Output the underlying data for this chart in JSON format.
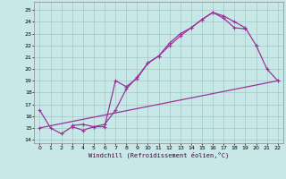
{
  "bg_color": "#c8e8e8",
  "grid_color": "#a8cccc",
  "line_color": "#993399",
  "xlabel": "Windchill (Refroidissement éolien,°C)",
  "xlim": [
    -0.5,
    22.5
  ],
  "ylim": [
    13.7,
    25.7
  ],
  "xticks": [
    0,
    1,
    2,
    3,
    4,
    5,
    6,
    7,
    8,
    9,
    10,
    11,
    12,
    13,
    14,
    15,
    16,
    17,
    18,
    19,
    20,
    21,
    22
  ],
  "yticks": [
    14,
    15,
    16,
    17,
    18,
    19,
    20,
    21,
    22,
    23,
    24,
    25
  ],
  "line1_x": [
    0,
    1,
    2,
    3,
    4,
    5,
    6,
    7,
    8,
    9,
    10,
    11,
    12,
    13,
    14,
    15,
    16,
    17,
    18,
    19,
    20
  ],
  "line1_y": [
    16.5,
    15.0,
    14.5,
    15.1,
    14.8,
    15.1,
    15.1,
    19.0,
    18.5,
    19.2,
    20.5,
    21.1,
    22.2,
    23.0,
    23.5,
    24.2,
    24.8,
    24.5,
    24.0,
    23.5,
    22.0
  ],
  "line2_x": [
    3,
    4,
    5,
    6,
    7,
    8,
    9,
    10,
    11,
    12,
    13,
    14,
    15,
    16,
    17,
    18,
    19
  ],
  "line2_y": [
    15.2,
    15.3,
    15.1,
    15.3,
    16.5,
    18.3,
    19.3,
    20.5,
    21.1,
    22.0,
    22.8,
    23.5,
    24.2,
    24.8,
    24.3,
    23.5,
    23.4
  ],
  "line3_x": [
    20,
    21,
    22
  ],
  "line3_y": [
    22.0,
    20.0,
    19.0
  ],
  "line4_x": [
    0,
    22
  ],
  "line4_y": [
    15.0,
    19.0
  ]
}
